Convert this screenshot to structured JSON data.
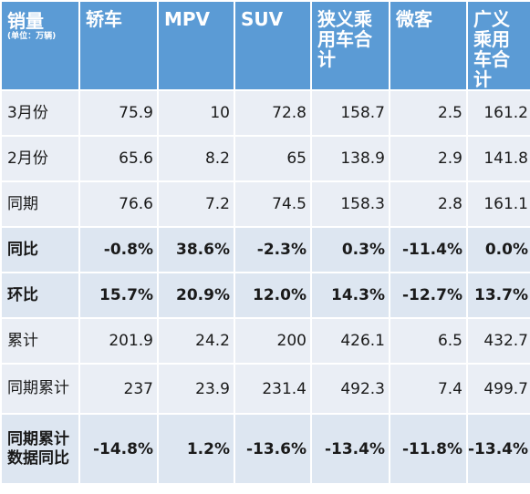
{
  "table": {
    "corner": {
      "title": "销量",
      "unit": "(单位：万辆)"
    },
    "columns": [
      {
        "key": "sedan",
        "label": "轿车"
      },
      {
        "key": "mpv",
        "label": "MPV"
      },
      {
        "key": "suv",
        "label": "SUV"
      },
      {
        "key": "narrow_total",
        "label": "狭义乘用车合计"
      },
      {
        "key": "minivan",
        "label": "微客"
      },
      {
        "key": "broad_total",
        "label": "广义乘用车合计"
      }
    ],
    "rows": [
      {
        "label": "3月份",
        "style": "light",
        "values": [
          "75.9",
          "10",
          "72.8",
          "158.7",
          "2.5",
          "161.2"
        ]
      },
      {
        "label": "2月份",
        "style": "light",
        "values": [
          "65.6",
          "8.2",
          "65",
          "138.9",
          "2.9",
          "141.8"
        ]
      },
      {
        "label": "同期",
        "style": "light",
        "values": [
          "76.6",
          "7.2",
          "74.5",
          "158.3",
          "2.8",
          "161.1"
        ]
      },
      {
        "label": "同比",
        "style": "mid",
        "ratio": true,
        "values": [
          "-0.8%",
          "38.6%",
          "-2.3%",
          "0.3%",
          "-11.4%",
          "0.0%"
        ]
      },
      {
        "label": "环比",
        "style": "mid",
        "ratio": true,
        "values": [
          "15.7%",
          "20.9%",
          "12.0%",
          "14.3%",
          "-12.7%",
          "13.7%"
        ]
      },
      {
        "label": "累计",
        "style": "light",
        "values": [
          "201.9",
          "24.2",
          "200",
          "426.1",
          "6.5",
          "432.7"
        ]
      },
      {
        "label": "同期累计",
        "style": "light",
        "values": [
          "237",
          "23.9",
          "231.4",
          "492.3",
          "7.4",
          "499.7"
        ]
      },
      {
        "label": "同期累计数据同比",
        "style": "mid",
        "ratio": true,
        "values": [
          "-14.8%",
          "1.2%",
          "-13.6%",
          "-13.4%",
          "-11.8%",
          "-13.4%"
        ]
      }
    ],
    "colors": {
      "header_bg": "#5b9bd5",
      "row_light": "#eaeef5",
      "row_mid": "#dde6f1",
      "positive": "#1f6fb6",
      "negative": "#22b04b"
    }
  }
}
